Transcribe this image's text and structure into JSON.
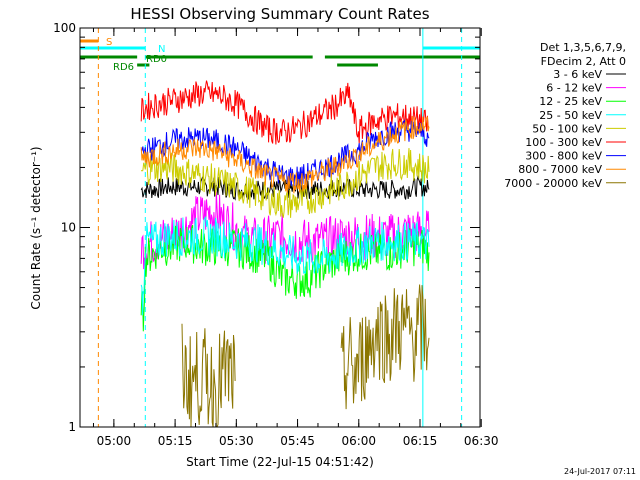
{
  "chart_data": {
    "type": "line",
    "title": "HESSI Observing Summary Count Rates",
    "xlabel": "Start Time (22-Jul-15 04:51:42)",
    "ylabel": "Count Rate (s⁻¹ detector⁻¹)",
    "y_scale": "log",
    "ylim": [
      1,
      100
    ],
    "x_unit": "minutes after 04:51:42",
    "xlim": [
      0,
      98
    ],
    "x_ticks": [
      {
        "value": 8.3,
        "label": "05:00"
      },
      {
        "value": 23.3,
        "label": "05:15"
      },
      {
        "value": 38.3,
        "label": "05:30"
      },
      {
        "value": 53.3,
        "label": "05:45"
      },
      {
        "value": 68.3,
        "label": "06:00"
      },
      {
        "value": 83.3,
        "label": "06:15"
      },
      {
        "value": 98.3,
        "label": "06:30"
      }
    ],
    "y_ticks": [
      {
        "value": 1,
        "label": "1"
      },
      {
        "value": 10,
        "label": "10"
      },
      {
        "value": 100,
        "label": "100"
      }
    ],
    "legend_header": [
      "Det 1,3,5,6,7,9,",
      "FDecim 2, Att 0"
    ],
    "legend_position": "right",
    "series": [
      {
        "name": "3 - 6 keV",
        "color": "#000000",
        "segments": [
          {
            "x": [
              15,
              18,
              22,
              26,
              30,
              34,
              38,
              42,
              46,
              50,
              54,
              57,
              60,
              64,
              68,
              72,
              76,
              80,
              82,
              84,
              85.5
            ],
            "y": [
              15.5,
              15.5,
              16,
              16,
              16,
              16,
              15.5,
              15.5,
              15.5,
              15.5,
              15.5,
              15.5,
              15.5,
              16,
              15.5,
              15.5,
              15.5,
              15.5,
              16,
              16,
              15.5
            ]
          }
        ]
      },
      {
        "name": "6 - 12 keV",
        "color": "#ff00ff",
        "segments": [
          {
            "x": [
              15,
              18,
              22,
              26,
              28,
              30,
              32,
              34,
              36,
              38,
              40,
              44,
              48,
              50,
              54,
              57,
              60,
              64,
              68,
              72,
              76,
              80,
              84,
              85.5
            ],
            "y": [
              8,
              8.5,
              9,
              10,
              11,
              11.5,
              12,
              11.5,
              10.5,
              10,
              9,
              8.5,
              9,
              9,
              8.5,
              8.5,
              8.5,
              9,
              9,
              9,
              9,
              9.5,
              9.5,
              9.5
            ]
          }
        ]
      },
      {
        "name": "12 - 25 keV",
        "color": "#00ff00",
        "segments": [
          {
            "x": [
              15,
              15.5,
              16,
              18,
              20,
              22,
              26,
              30,
              34,
              38,
              42,
              46,
              50,
              54,
              56,
              58,
              60,
              64,
              68,
              72,
              76,
              80,
              84,
              85.5
            ],
            "y": [
              4.5,
              3.5,
              7,
              7.5,
              8,
              8,
              8.5,
              8,
              8,
              8,
              7.5,
              7,
              5.5,
              5.5,
              5.5,
              6,
              6.5,
              7,
              7.5,
              7.5,
              7.5,
              8,
              8,
              7.5
            ]
          }
        ]
      },
      {
        "name": "25 - 50 keV",
        "color": "#00ffff",
        "segments": [
          {
            "x": [
              15,
              15.5,
              16,
              18,
              22,
              26,
              30,
              34,
              38,
              42,
              46,
              50,
              54,
              57,
              60,
              64,
              68,
              72,
              76,
              80,
              84,
              85.5
            ],
            "y": [
              4.5,
              4.5,
              8.5,
              8.5,
              9,
              9,
              9,
              9,
              8.5,
              8.5,
              8,
              7.5,
              7,
              7,
              7,
              7.5,
              8,
              8.5,
              8.5,
              8.5,
              8.5,
              8
            ]
          }
        ]
      },
      {
        "name": "50 - 100 keV",
        "color": "#cccc00",
        "segments": [
          {
            "x": [
              15,
              18,
              22,
              26,
              30,
              34,
              38,
              42,
              46,
              50,
              54,
              57,
              60,
              64,
              66,
              68,
              72,
              76,
              80,
              84,
              85.5
            ],
            "y": [
              19,
              20,
              20,
              19,
              18,
              17,
              16,
              15,
              14,
              13,
              13.5,
              14,
              15,
              16,
              17,
              18,
              20,
              21,
              21,
              20,
              19
            ]
          }
        ]
      },
      {
        "name": "100 - 300 keV",
        "color": "#ff0000",
        "segments": [
          {
            "x": [
              15,
              16,
              20,
              24,
              28,
              30,
              34,
              38,
              42,
              46,
              50,
              54,
              58,
              62,
              64,
              66,
              68,
              70,
              72,
              76,
              80,
              84,
              85.5
            ],
            "y": [
              38,
              40,
              42,
              44,
              46,
              47,
              46,
              42,
              36,
              31,
              30,
              32,
              36,
              40,
              43,
              46,
              30,
              32,
              34,
              36,
              36,
              34,
              32
            ]
          }
        ]
      },
      {
        "name": "300 - 800 keV",
        "color": "#0000ff",
        "segments": [
          {
            "x": [
              15,
              18,
              22,
              26,
              30,
              34,
              38,
              42,
              46,
              50,
              54,
              57,
              60,
              64,
              68,
              72,
              76,
              80,
              84,
              85.5
            ],
            "y": [
              24,
              25,
              27,
              28,
              28,
              27,
              25,
              22,
              20,
              18,
              18,
              19,
              20,
              22,
              24,
              28,
              30,
              31,
              30,
              28
            ]
          }
        ]
      },
      {
        "name": "800 - 7000 keV",
        "color": "#ff8800",
        "segments": [
          {
            "x": [
              15,
              18,
              22,
              26,
              30,
              34,
              38,
              42,
              46,
              50,
              54,
              57,
              60,
              64,
              68,
              72,
              76,
              80,
              84,
              85.5
            ],
            "y": [
              22,
              23,
              24,
              25,
              25,
              24,
              22,
              20,
              18,
              17,
              17,
              18,
              19,
              21,
              23,
              26,
              29,
              31,
              33,
              32
            ]
          }
        ]
      },
      {
        "name": "7000 - 20000 keV",
        "color": "#8b7500",
        "segments": [
          {
            "x": [
              25,
              27,
              30,
              33,
              36,
              38
            ],
            "y": [
              1.9,
              1.7,
              1.8,
              1.6,
              1.9,
              1.7
            ]
          },
          {
            "x": [
              64,
              65,
              66,
              67,
              68,
              70,
              72,
              74,
              76,
              78,
              80,
              82,
              84,
              85.5
            ],
            "y": [
              1.7,
              1.9,
              2.2,
              1.8,
              2.0,
              2.4,
              2.9,
              3.0,
              2.8,
              3.2,
              3.0,
              2.9,
              3.1,
              2.8
            ]
          }
        ]
      }
    ],
    "flag_bars": [
      {
        "label": "S",
        "color": "#ff8800",
        "level": 1.0,
        "segments": [
          [
            0,
            4.5
          ]
        ]
      },
      {
        "label": "N",
        "color": "#00ffff",
        "level": 2.0,
        "segments": [
          [
            0,
            16
          ],
          [
            84,
            98
          ]
        ]
      },
      {
        "label": "RD0",
        "color": "#008800",
        "level": 3.0,
        "segments": [
          [
            0,
            14
          ],
          [
            16,
            57
          ],
          [
            60,
            98
          ]
        ]
      },
      {
        "label": "RD6",
        "color": "#008800",
        "level": 4.0,
        "segments": [
          [
            14,
            17
          ],
          [
            63,
            73
          ]
        ]
      }
    ],
    "vertical_markers": [
      {
        "x": 4.5,
        "color": "#ff8800",
        "style": "dashed"
      },
      {
        "x": 16,
        "color": "#00ffff",
        "style": "dashed"
      },
      {
        "x": 84,
        "color": "#00ffff",
        "style": "solid"
      },
      {
        "x": 93.5,
        "color": "#00ffff",
        "style": "dashed"
      }
    ],
    "timestamp": "24-Jul-2017 07:11"
  }
}
